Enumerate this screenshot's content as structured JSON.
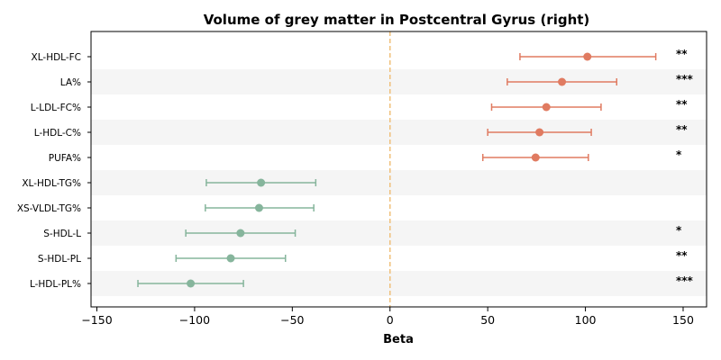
{
  "chart_data": {
    "type": "scatter",
    "title": "Volume of grey matter in Postcentral Gyrus (right)",
    "xlabel": "Beta",
    "ylabel": "",
    "xlim": [
      -153,
      162
    ],
    "xticks": [
      -150,
      -100,
      -50,
      0,
      50,
      100,
      150
    ],
    "xtick_labels": [
      "−150",
      "−100",
      "−50",
      "0",
      "50",
      "100",
      "150"
    ],
    "reference_line": 0,
    "colors": {
      "positive": "#e07b61",
      "negative": "#86b59c",
      "reference": "#f0c07a",
      "band": "#f5f5f5"
    },
    "points": [
      {
        "label": "XL-HDL-FC",
        "beta": 101,
        "ci_low": 66.5,
        "ci_high": 136,
        "sig": "**",
        "direction": "positive"
      },
      {
        "label": "LA%",
        "beta": 88,
        "ci_low": 60,
        "ci_high": 116,
        "sig": "***",
        "direction": "positive"
      },
      {
        "label": "L-LDL-FC%",
        "beta": 80,
        "ci_low": 52,
        "ci_high": 108,
        "sig": "**",
        "direction": "positive"
      },
      {
        "label": "L-HDL-C%",
        "beta": 76.5,
        "ci_low": 50,
        "ci_high": 103,
        "sig": "**",
        "direction": "positive"
      },
      {
        "label": "PUFA%",
        "beta": 74.5,
        "ci_low": 47.5,
        "ci_high": 101.5,
        "sig": "*",
        "direction": "positive"
      },
      {
        "label": "XL-HDL-TG%",
        "beta": -66,
        "ci_low": -94,
        "ci_high": -38,
        "sig": "",
        "direction": "negative"
      },
      {
        "label": "XS-VLDL-TG%",
        "beta": -67,
        "ci_low": -94.5,
        "ci_high": -39,
        "sig": "",
        "direction": "negative"
      },
      {
        "label": "S-HDL-L",
        "beta": -76.5,
        "ci_low": -104.5,
        "ci_high": -48.5,
        "sig": "*",
        "direction": "negative"
      },
      {
        "label": "S-HDL-PL",
        "beta": -81.5,
        "ci_low": -109.5,
        "ci_high": -53.5,
        "sig": "**",
        "direction": "negative"
      },
      {
        "label": "L-HDL-PL%",
        "beta": -102,
        "ci_low": -129,
        "ci_high": -75,
        "sig": "***",
        "direction": "negative"
      }
    ]
  }
}
